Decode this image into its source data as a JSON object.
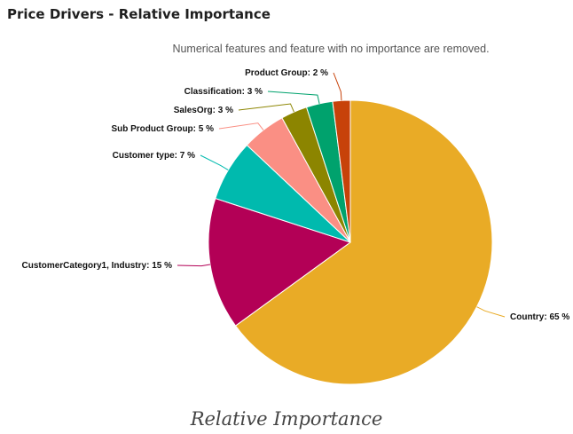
{
  "panel": {
    "title": "Price Drivers - Relative Importance",
    "subtitle": "Numerical features and feature with no importance are removed."
  },
  "chart_data": {
    "type": "pie",
    "title": "Relative Importance",
    "start_angle_deg": 0,
    "direction": "clockwise",
    "slices": [
      {
        "name": "Country",
        "value": 65,
        "label": "Country: 65 %",
        "color": "#E9AB26"
      },
      {
        "name": "CustomerCategory1, Industry",
        "value": 15,
        "label": "CustomerCategory1, Industry: 15 %",
        "color": "#B30056"
      },
      {
        "name": "Customer type",
        "value": 7,
        "label": "Customer type: 7 %",
        "color": "#00BAAE"
      },
      {
        "name": "Sub Product Group",
        "value": 5,
        "label": "Sub Product Group: 5 %",
        "color": "#FA8F84"
      },
      {
        "name": "SalesOrg",
        "value": 3,
        "label": "SalesOrg: 3 %",
        "color": "#8C8500"
      },
      {
        "name": "Classification",
        "value": 3,
        "label": "Classification: 3 %",
        "color": "#00A26D"
      },
      {
        "name": "Product Group",
        "value": 2,
        "label": "Product Group: 2 %",
        "color": "#C7420A"
      }
    ]
  }
}
